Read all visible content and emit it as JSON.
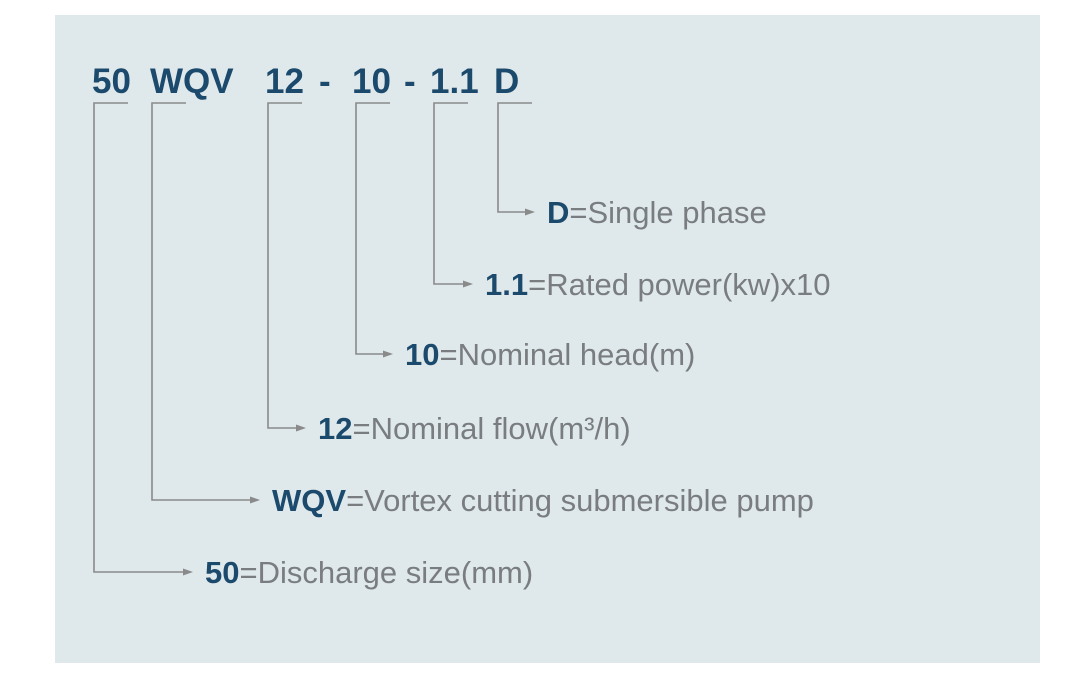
{
  "model": {
    "parts": [
      {
        "code": "50",
        "description": "=Discharge size(mm)"
      },
      {
        "code": "WQV",
        "description": "=Vortex cutting submersible pump"
      },
      {
        "code": "12",
        "description": "=Nominal flow(m³/h)"
      },
      {
        "code": "10",
        "description": "=Nominal head(m)"
      },
      {
        "code": "1.1",
        "description": "=Rated power(kw)x10"
      },
      {
        "code": "D",
        "description": "=Single phase"
      }
    ],
    "separator": "-"
  }
}
